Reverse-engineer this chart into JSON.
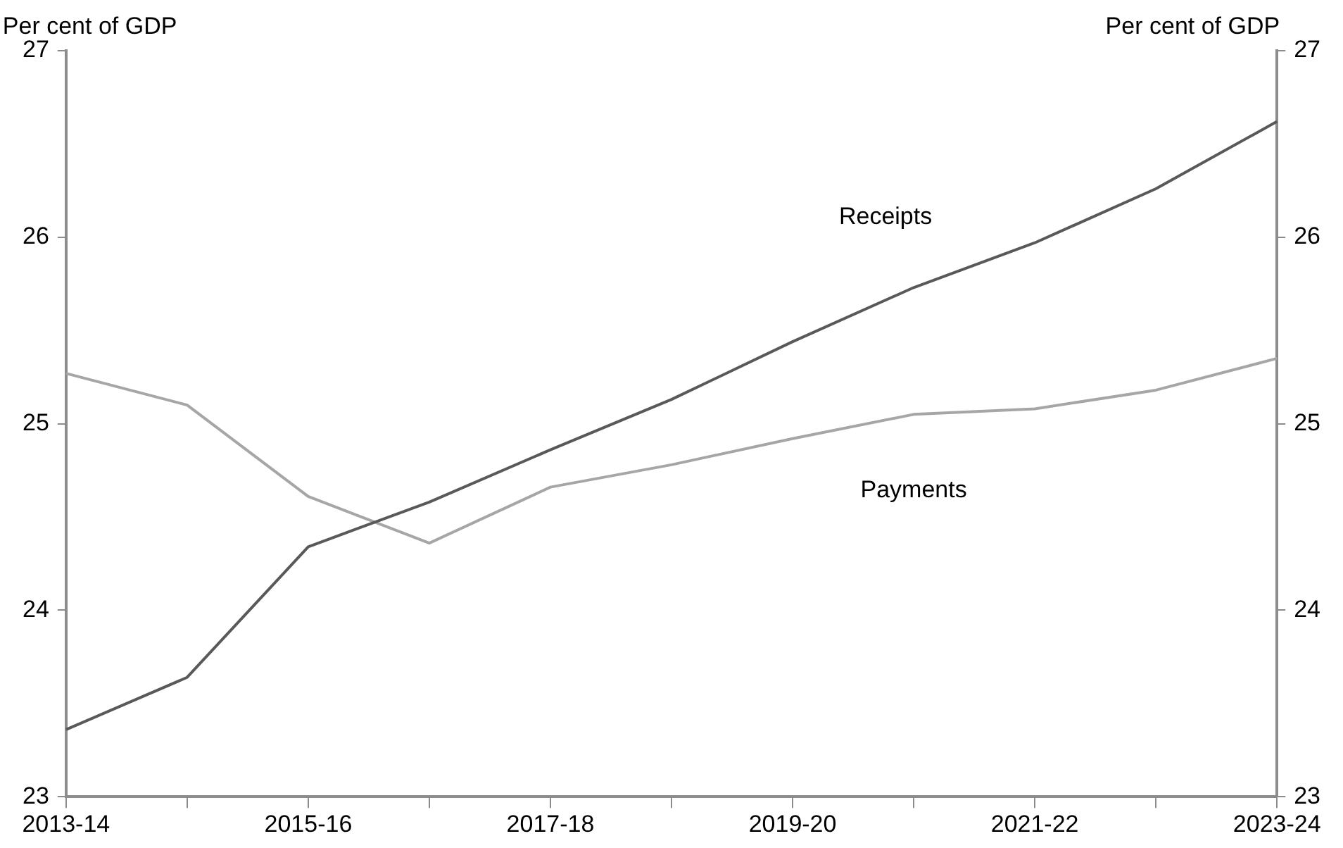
{
  "chart_data": {
    "type": "line",
    "categories": [
      "2013-14",
      null,
      "2015-16",
      null,
      "2017-18",
      null,
      "2019-20",
      null,
      "2021-22",
      null,
      "2023-24"
    ],
    "series": [
      {
        "name": "Receipts",
        "color": "#595959",
        "values": [
          23.36,
          23.64,
          24.34,
          24.58,
          24.86,
          25.13,
          25.44,
          25.73,
          25.97,
          26.26,
          26.62
        ]
      },
      {
        "name": "Payments",
        "color": "#a6a6a6",
        "values": [
          25.27,
          25.1,
          24.61,
          24.36,
          24.66,
          24.78,
          24.92,
          25.05,
          25.08,
          25.18,
          25.35
        ]
      }
    ],
    "ylabel": "Per cent of GDP",
    "y2label": "Per cent of GDP",
    "ylim": [
      23,
      27
    ],
    "yticks": [
      23,
      24,
      25,
      26,
      27
    ],
    "y2lim": [
      23,
      27
    ],
    "y2ticks": [
      23,
      24,
      25,
      26,
      27
    ],
    "grid": false,
    "legend": false,
    "marker": "none",
    "line_style": "solid"
  }
}
